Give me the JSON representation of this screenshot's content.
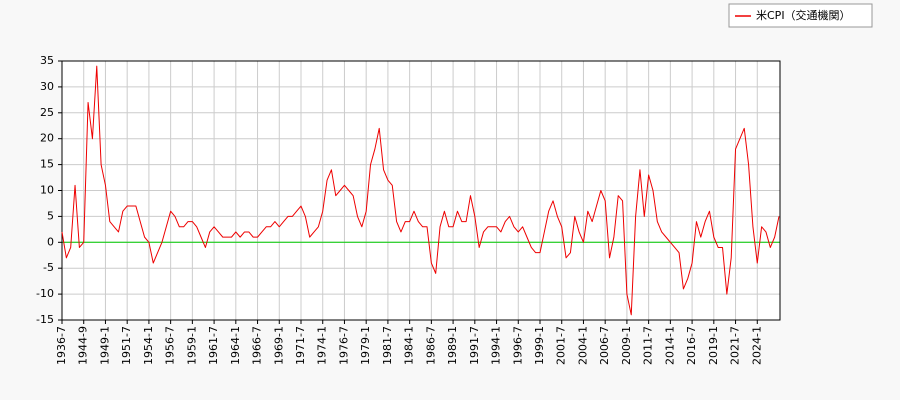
{
  "chart_data": {
    "type": "line",
    "categories": [
      "1936-7",
      null,
      null,
      null,
      null,
      "1944-9",
      null,
      null,
      null,
      null,
      "1949-1",
      null,
      null,
      null,
      null,
      "1951-7",
      null,
      null,
      null,
      null,
      "1954-1",
      null,
      null,
      null,
      null,
      "1956-7",
      null,
      null,
      null,
      null,
      "1959-1",
      null,
      null,
      null,
      null,
      "1961-7",
      null,
      null,
      null,
      null,
      "1964-1",
      null,
      null,
      null,
      null,
      "1966-7",
      null,
      null,
      null,
      null,
      "1969-1",
      null,
      null,
      null,
      null,
      "1971-7",
      null,
      null,
      null,
      null,
      "1974-1",
      null,
      null,
      null,
      null,
      "1976-7",
      null,
      null,
      null,
      null,
      "1979-1",
      null,
      null,
      null,
      null,
      "1981-7",
      null,
      null,
      null,
      null,
      "1984-1",
      null,
      null,
      null,
      null,
      "1986-7",
      null,
      null,
      null,
      null,
      "1989-1",
      null,
      null,
      null,
      null,
      "1991-7",
      null,
      null,
      null,
      null,
      "1994-1",
      null,
      null,
      null,
      null,
      "1996-7",
      null,
      null,
      null,
      null,
      "1999-1",
      null,
      null,
      null,
      null,
      "2001-7",
      null,
      null,
      null,
      null,
      "2004-1",
      null,
      null,
      null,
      null,
      "2006-7",
      null,
      null,
      null,
      null,
      "2009-1",
      null,
      null,
      null,
      null,
      "2011-7",
      null,
      null,
      null,
      null,
      "2014-1",
      null,
      null,
      null,
      null,
      "2016-7",
      null,
      null,
      null,
      null,
      "2019-1",
      null,
      null,
      null,
      null,
      "2021-7",
      null,
      null,
      null,
      null,
      "2024-1",
      null,
      null,
      null,
      null,
      null
    ],
    "series": [
      {
        "name": "米CPI（交通機関）",
        "color": "#ee0000",
        "values": [
          2,
          -3,
          -1,
          11,
          -1,
          0,
          27,
          20,
          34,
          15,
          11,
          4,
          3,
          2,
          6,
          7,
          7,
          7,
          4,
          1,
          0,
          -4,
          -2,
          0,
          3,
          6,
          5,
          3,
          3,
          4,
          4,
          3,
          1,
          -1,
          2,
          3,
          2,
          1,
          1,
          1,
          2,
          1,
          2,
          2,
          1,
          1,
          2,
          3,
          3,
          4,
          3,
          4,
          5,
          5,
          6,
          7,
          5,
          1,
          2,
          3,
          6,
          12,
          14,
          9,
          10,
          11,
          10,
          9,
          5,
          3,
          6,
          15,
          18,
          22,
          14,
          12,
          11,
          4,
          2,
          4,
          4,
          6,
          4,
          3,
          3,
          -4,
          -6,
          3,
          6,
          3,
          3,
          6,
          4,
          4,
          9,
          5,
          -1,
          2,
          3,
          3,
          3,
          2,
          4,
          5,
          3,
          2,
          3,
          1,
          -1,
          -2,
          -2,
          2,
          6,
          8,
          5,
          3,
          -3,
          -2,
          5,
          2,
          0,
          6,
          4,
          7,
          10,
          8,
          -3,
          1,
          9,
          8,
          -10,
          -14,
          5,
          14,
          5,
          13,
          10,
          4,
          2,
          1,
          0,
          -1,
          -2,
          -9,
          -7,
          -4,
          4,
          1,
          4,
          6,
          1,
          -1,
          -1,
          -10,
          -3,
          18,
          20,
          22,
          15,
          3,
          -4,
          3,
          2,
          -1,
          1,
          5
        ]
      }
    ],
    "ylim": [
      -15,
      35
    ],
    "yticks": [
      -15,
      -10,
      -5,
      0,
      5,
      10,
      15,
      20,
      25,
      30,
      35
    ],
    "grid": true,
    "reference_line": 0,
    "reference_color": "#00cc00",
    "legend": "top-right"
  }
}
